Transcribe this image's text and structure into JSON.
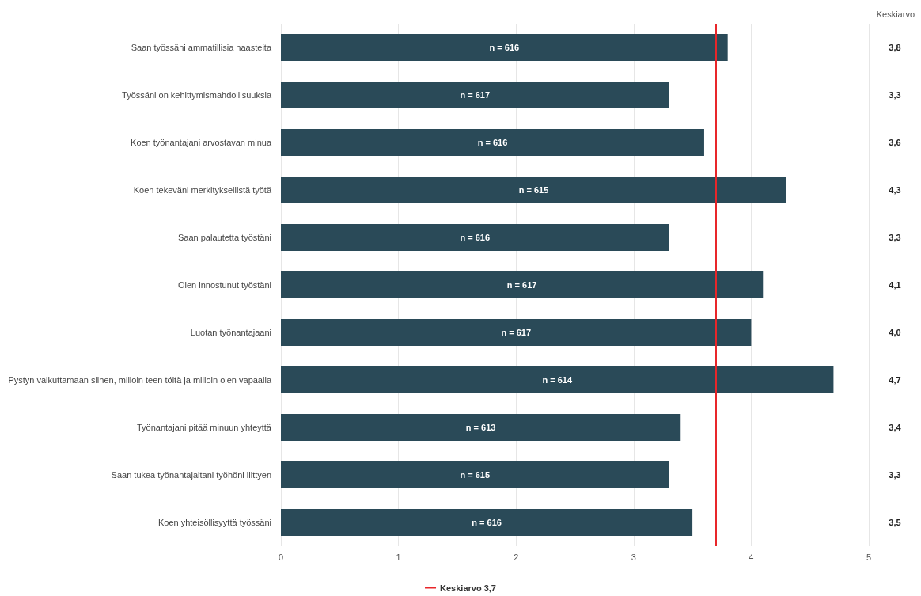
{
  "chart_data": {
    "type": "bar",
    "orientation": "horizontal",
    "categories": [
      "Saan työssäni ammatillisia haasteita",
      "Työssäni on kehittymismahdollisuuksia",
      "Koen työnantajani arvostavan minua",
      "Koen tekeväni merkityksellistä työtä",
      "Saan palautetta työstäni",
      "Olen innostunut työstäni",
      "Luotan työnantajaani",
      "Pystyn vaikuttamaan siihen, milloin teen töitä ja milloin olen vapaalla",
      "Työnantajani pitää minuun yhteyttä",
      "Saan tukea työnantajaltani työhöni liittyen",
      "Koen yhteisöllisyyttä työssäni"
    ],
    "values": [
      3.8,
      3.3,
      3.6,
      4.3,
      3.3,
      4.1,
      4.0,
      4.7,
      3.4,
      3.3,
      3.5
    ],
    "value_labels": [
      "3,8",
      "3,3",
      "3,6",
      "4,3",
      "3,3",
      "4,1",
      "4,0",
      "4,7",
      "3,4",
      "3,3",
      "3,5"
    ],
    "color": "#2a4a58",
    "xlim": [
      0,
      5
    ],
    "xticks": [
      0,
      1,
      2,
      3,
      4,
      5
    ],
    "grid": "x",
    "legend": "bottom",
    "ref_lines": [
      {
        "axis": "x",
        "value": 3.7,
        "label": "Keskiarvo 3,7",
        "color": "#e8262a"
      }
    ],
    "annotations": [
      "Keskiarvo",
      "n = 616",
      "n = 617",
      "n = 616",
      "n = 615",
      "n = 616",
      "n = 617",
      "n = 617",
      "n = 614",
      "n = 613",
      "n = 615",
      "n = 616"
    ]
  }
}
